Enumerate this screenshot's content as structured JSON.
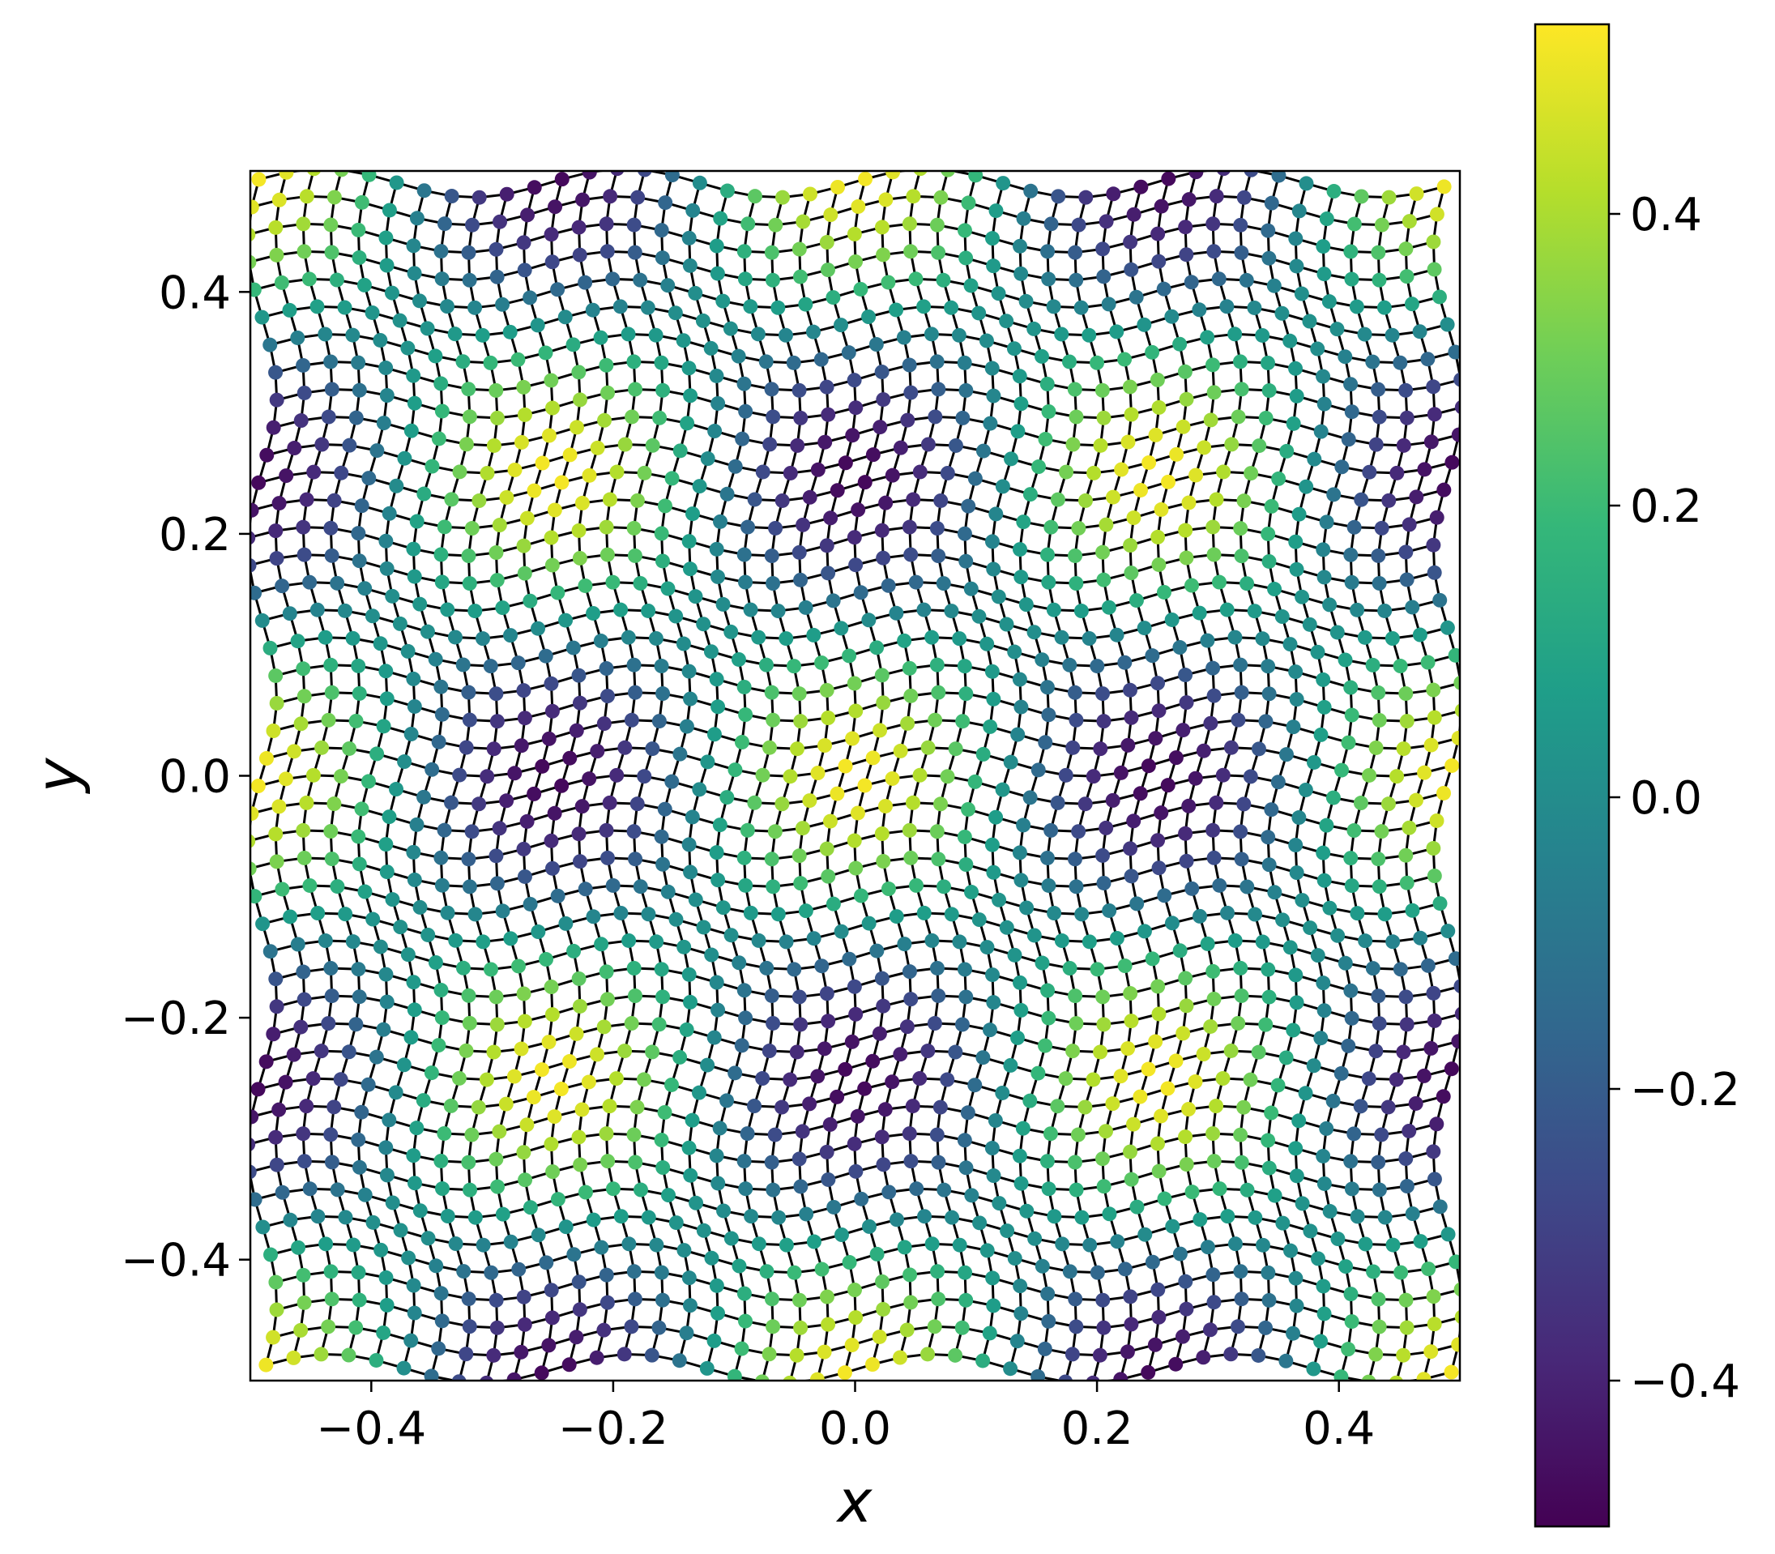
{
  "chart_data": {
    "type": "scatter",
    "title": "",
    "xlabel": "x",
    "ylabel": "y",
    "xlim": [
      -0.5,
      0.5
    ],
    "ylim": [
      -0.5,
      0.5
    ],
    "x_ticks": [
      -0.4,
      -0.2,
      0.0,
      0.2,
      0.4
    ],
    "y_ticks": [
      -0.4,
      -0.2,
      0.0,
      0.2,
      0.4
    ],
    "x_tick_labels": [
      "−0.4",
      "−0.2",
      "0.0",
      "0.2",
      "0.4"
    ],
    "y_tick_labels": [
      "−0.4",
      "−0.2",
      "0.0",
      "0.2",
      "0.4"
    ],
    "grid": false,
    "colormap": "viridis",
    "marker_edges": "black mesh connecting neighbouring points",
    "field": {
      "description_formula": "cos(2*pi*(2x)) * cos(2*pi*(2y)) style pattern",
      "points_per_axis": 44
    },
    "colorbar": {
      "range": [
        -0.5,
        0.53
      ],
      "ticks": [
        -0.4,
        -0.2,
        0.0,
        0.2,
        0.4
      ],
      "tick_labels": [
        "−0.4",
        "−0.2",
        "0.0",
        "0.2",
        "0.4"
      ],
      "colors": [
        "#440154",
        "#482878",
        "#3e4989",
        "#31688e",
        "#26828e",
        "#1f9e89",
        "#35b779",
        "#6ece58",
        "#b5de2b",
        "#fde725"
      ]
    }
  }
}
